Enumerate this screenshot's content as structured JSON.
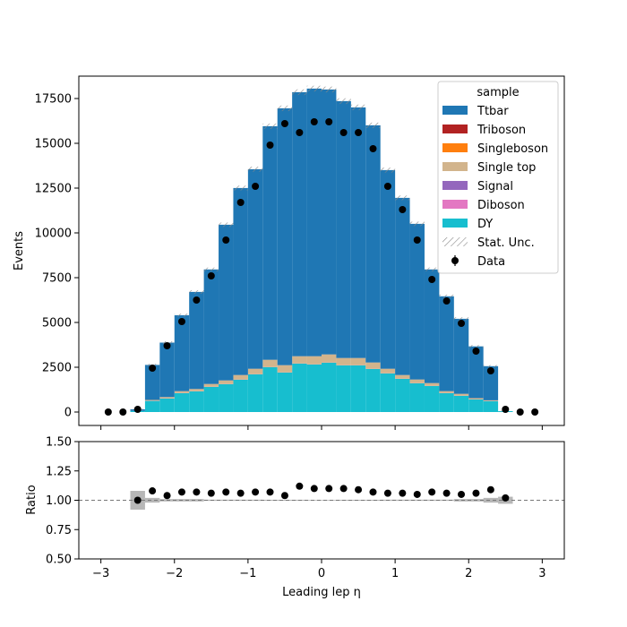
{
  "chart_data": {
    "type": "bar",
    "subtype": "stacked-histogram-with-ratio-panel",
    "x_edges": [
      -3.0,
      -2.8,
      -2.6,
      -2.4,
      -2.2,
      -2.0,
      -1.8,
      -1.6,
      -1.4,
      -1.2,
      -1.0,
      -0.8,
      -0.6,
      -0.4,
      -0.2,
      0.0,
      0.2,
      0.4,
      0.6,
      0.8,
      1.0,
      1.2,
      1.4,
      1.6,
      1.8,
      2.0,
      2.2,
      2.4,
      2.6,
      2.8,
      3.0
    ],
    "x_centers": [
      -2.9,
      -2.7,
      -2.5,
      -2.3,
      -2.1,
      -1.9,
      -1.7,
      -1.5,
      -1.3,
      -1.1,
      -0.9,
      -0.7,
      -0.5,
      -0.3,
      -0.1,
      0.1,
      0.3,
      0.5,
      0.7,
      0.9,
      1.1,
      1.3,
      1.5,
      1.7,
      1.9,
      2.1,
      2.3,
      2.5,
      2.7,
      2.9
    ],
    "xlim": [
      -3.3,
      3.3
    ],
    "xticks": [
      -3,
      -2,
      -1,
      0,
      1,
      2,
      3
    ],
    "xtick_labels": [
      "−3",
      "−2",
      "−1",
      "0",
      "1",
      "2",
      "3"
    ],
    "xlabel": "Leading lep η",
    "main": {
      "ylabel": "Events",
      "ylim": [
        -750,
        18750
      ],
      "yticks": [
        0,
        2500,
        5000,
        7500,
        10000,
        12500,
        15000,
        17500
      ],
      "ytick_labels": [
        "0",
        "2500",
        "5000",
        "7500",
        "10000",
        "12500",
        "15000",
        "17500"
      ]
    },
    "ratio": {
      "ylabel": "Ratio",
      "ylim": [
        0.5,
        1.5
      ],
      "yticks": [
        0.5,
        0.75,
        1.0,
        1.25,
        1.5
      ],
      "ytick_labels": [
        "0.50",
        "0.75",
        "1.00",
        "1.25",
        "1.50"
      ],
      "reference": 1.0,
      "values": [
        null,
        null,
        1.0,
        1.08,
        1.04,
        1.07,
        1.07,
        1.06,
        1.07,
        1.06,
        1.07,
        1.07,
        1.04,
        1.12,
        1.1,
        1.1,
        1.1,
        1.09,
        1.07,
        1.06,
        1.06,
        1.05,
        1.07,
        1.06,
        1.05,
        1.06,
        1.09,
        1.02,
        null,
        null
      ],
      "unc": [
        0,
        0,
        0.08,
        0.02,
        0.01,
        0.01,
        0.01,
        0.005,
        0.005,
        0.005,
        0.005,
        0.004,
        0.004,
        0.004,
        0.003,
        0.003,
        0.004,
        0.004,
        0.004,
        0.005,
        0.005,
        0.005,
        0.005,
        0.005,
        0.01,
        0.01,
        0.02,
        0.03,
        0,
        0
      ]
    },
    "legend": {
      "title": "sample",
      "placement": "top-right"
    },
    "series": [
      {
        "name": "DY",
        "color": "#17becf",
        "values": [
          0,
          0,
          60,
          620,
          750,
          1050,
          1150,
          1400,
          1550,
          1800,
          2100,
          2500,
          2200,
          2700,
          2650,
          2750,
          2600,
          2600,
          2400,
          2150,
          1850,
          1600,
          1450,
          1050,
          900,
          700,
          600,
          50,
          0,
          0
        ]
      },
      {
        "name": "Diboson",
        "color": "#e377c2",
        "values": [
          0,
          0,
          0,
          5,
          5,
          5,
          5,
          5,
          5,
          5,
          5,
          5,
          5,
          5,
          5,
          5,
          5,
          5,
          5,
          5,
          5,
          5,
          5,
          5,
          5,
          5,
          5,
          0,
          0,
          0
        ]
      },
      {
        "name": "Signal",
        "color": "#9467bd",
        "values": [
          0,
          0,
          0,
          5,
          5,
          5,
          5,
          5,
          5,
          5,
          5,
          5,
          5,
          5,
          5,
          5,
          5,
          5,
          5,
          5,
          5,
          5,
          5,
          5,
          5,
          5,
          5,
          0,
          0,
          0
        ]
      },
      {
        "name": "Single top",
        "color": "#d2b48c",
        "values": [
          0,
          0,
          0,
          40,
          70,
          100,
          120,
          150,
          200,
          250,
          300,
          400,
          400,
          400,
          450,
          450,
          400,
          400,
          350,
          250,
          200,
          200,
          150,
          100,
          100,
          60,
          40,
          0,
          0,
          0
        ]
      },
      {
        "name": "Singleboson",
        "color": "#ff7f0e",
        "values": [
          0,
          0,
          0,
          5,
          5,
          5,
          5,
          5,
          5,
          5,
          5,
          5,
          5,
          5,
          5,
          5,
          5,
          5,
          5,
          5,
          5,
          5,
          5,
          5,
          5,
          5,
          5,
          0,
          0,
          0
        ]
      },
      {
        "name": "Triboson",
        "color": "#b22222",
        "values": [
          0,
          0,
          0,
          0,
          0,
          0,
          0,
          0,
          0,
          0,
          0,
          0,
          0,
          0,
          0,
          0,
          0,
          0,
          0,
          0,
          0,
          0,
          0,
          0,
          0,
          0,
          0,
          0,
          0,
          0
        ]
      },
      {
        "name": "Ttbar",
        "color": "#1f77b4",
        "values": [
          0,
          0,
          90,
          1955,
          3040,
          4240,
          5420,
          6395,
          8690,
          10440,
          11140,
          13040,
          14340,
          14740,
          14940,
          14790,
          14340,
          13990,
          13240,
          11090,
          9890,
          8690,
          6345,
          5295,
          4190,
          2890,
          1905,
          0,
          0,
          0
        ]
      }
    ],
    "data": {
      "name": "Data",
      "values": [
        0,
        0,
        150,
        2450,
        3700,
        5050,
        6250,
        7600,
        9600,
        11700,
        12600,
        14900,
        16100,
        15600,
        16200,
        16200,
        15600,
        15600,
        14700,
        12600,
        11300,
        9600,
        7400,
        6200,
        4950,
        3400,
        2300,
        150,
        0,
        0
      ]
    },
    "stat_unc_label": "Stat. Unc."
  }
}
